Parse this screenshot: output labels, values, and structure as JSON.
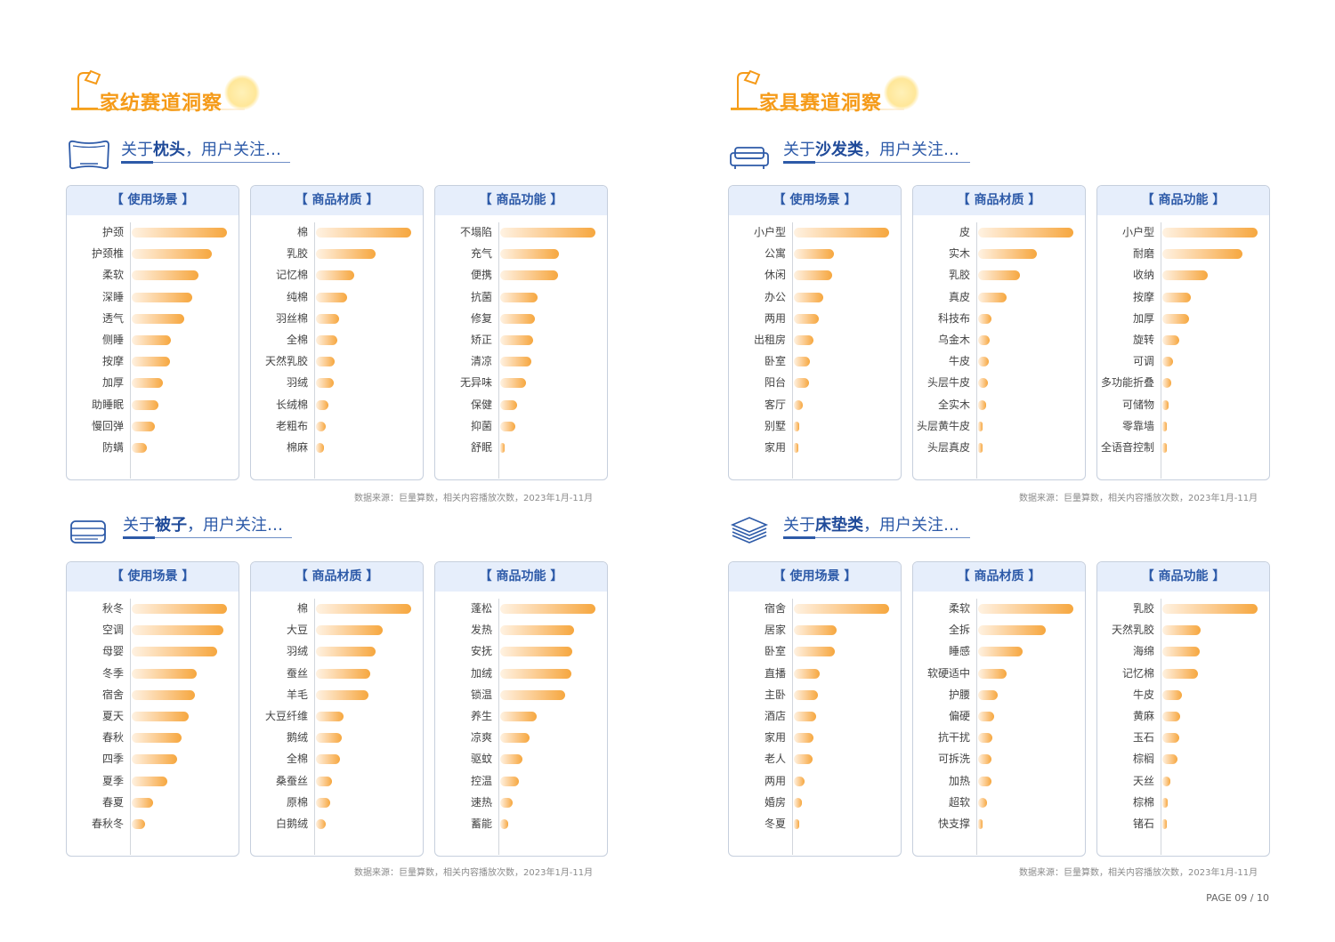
{
  "sections": [
    {
      "title": "家纺赛道洞察"
    },
    {
      "title": "家具赛道洞察"
    }
  ],
  "colors": {
    "accent_orange": "#f59a18",
    "accent_blue": "#2d5aa8",
    "bar_end": "#f6a73f",
    "panel_header_bg": "#e6eefb"
  },
  "page": "PAGE 09 / 10",
  "chart_data": [
    {
      "id": "pillow",
      "icon": "pillow-icon",
      "prefix": "关于",
      "keyword": "枕头",
      "suffix": "，用户关注…",
      "source": "数据来源：巨量算数，相关内容播放次数，2023年1月-11月",
      "panels": [
        {
          "type": "bar",
          "title": "【 使用场景 】",
          "categories": [
            "护颈",
            "护颈椎",
            "柔软",
            "深睡",
            "透气",
            "侧睡",
            "按摩",
            "加厚",
            "助睡眠",
            "慢回弹",
            "防螨"
          ],
          "values": [
            100,
            84,
            70,
            64,
            55,
            41,
            40,
            33,
            28,
            24,
            16
          ]
        },
        {
          "type": "bar",
          "title": "【 商品材质 】",
          "categories": [
            "棉",
            "乳胶",
            "记忆棉",
            "纯棉",
            "羽丝棉",
            "全棉",
            "天然乳胶",
            "羽绒",
            "长绒棉",
            "老粗布",
            "棉麻"
          ],
          "values": [
            100,
            63,
            40,
            33,
            24,
            22,
            20,
            19,
            13,
            10,
            8
          ]
        },
        {
          "type": "bar",
          "title": "【 商品功能 】",
          "categories": [
            "不塌陷",
            "充气",
            "便携",
            "抗菌",
            "修复",
            "矫正",
            "清凉",
            "无异味",
            "保健",
            "抑菌",
            "舒眠"
          ],
          "values": [
            100,
            62,
            61,
            39,
            36,
            35,
            33,
            27,
            18,
            16,
            5
          ]
        }
      ]
    },
    {
      "id": "sofa",
      "icon": "sofa-icon",
      "prefix": "关于",
      "keyword": "沙发类",
      "suffix": "，用户关注…",
      "source": "数据来源：巨量算数，相关内容播放次数，2023年1月-11月",
      "panels": [
        {
          "type": "bar",
          "title": "【 使用场景 】",
          "categories": [
            "小户型",
            "公寓",
            "休闲",
            "办公",
            "两用",
            "出租房",
            "卧室",
            "阳台",
            "客厅",
            "别墅",
            "家用"
          ],
          "values": [
            100,
            42,
            40,
            31,
            26,
            21,
            17,
            16,
            9,
            6,
            4
          ]
        },
        {
          "type": "bar",
          "title": "【 商品材质 】",
          "categories": [
            "皮",
            "实木",
            "乳胶",
            "真皮",
            "科技布",
            "乌金木",
            "牛皮",
            "头层牛皮",
            "全实木",
            "头层黄牛皮",
            "头层真皮"
          ],
          "values": [
            100,
            62,
            44,
            30,
            14,
            12,
            11,
            10,
            8,
            5,
            3
          ]
        },
        {
          "type": "bar",
          "title": "【 商品功能 】",
          "categories": [
            "小户型",
            "耐磨",
            "收纳",
            "按摩",
            "加厚",
            "旋转",
            "可调",
            "多功能折叠",
            "可储物",
            "零靠墙",
            "全语音控制"
          ],
          "values": [
            100,
            84,
            48,
            30,
            28,
            18,
            11,
            9,
            7,
            5,
            2
          ]
        }
      ]
    },
    {
      "id": "quilt",
      "icon": "quilt-icon",
      "prefix": "关于",
      "keyword": "被子",
      "suffix": "，用户关注…",
      "source": "数据来源：巨量算数，相关内容播放次数，2023年1月-11月",
      "panels": [
        {
          "type": "bar",
          "title": "【 使用场景 】",
          "categories": [
            "秋冬",
            "空调",
            "母婴",
            "冬季",
            "宿舍",
            "夏天",
            "春秋",
            "四季",
            "夏季",
            "春夏",
            "春秋冬"
          ],
          "values": [
            100,
            96,
            90,
            68,
            66,
            60,
            52,
            48,
            37,
            22,
            14
          ]
        },
        {
          "type": "bar",
          "title": "【 商品材质 】",
          "categories": [
            "棉",
            "大豆",
            "羽绒",
            "蚕丝",
            "羊毛",
            "大豆纤维",
            "鹅绒",
            "全棉",
            "桑蚕丝",
            "原棉",
            "白鹅绒"
          ],
          "values": [
            100,
            70,
            63,
            57,
            55,
            29,
            27,
            25,
            17,
            15,
            10
          ]
        },
        {
          "type": "bar",
          "title": "【 商品功能 】",
          "categories": [
            "蓬松",
            "发热",
            "安抚",
            "加绒",
            "锁温",
            "养生",
            "凉爽",
            "驱蚊",
            "控温",
            "速热",
            "蓄能"
          ],
          "values": [
            100,
            78,
            76,
            75,
            68,
            38,
            31,
            23,
            20,
            13,
            8
          ]
        }
      ]
    },
    {
      "id": "mattress",
      "icon": "mattress-icon",
      "prefix": "关于",
      "keyword": "床垫类",
      "suffix": "，用户关注…",
      "source": "数据来源：巨量算数，相关内容播放次数，2023年1月-11月",
      "panels": [
        {
          "type": "bar",
          "title": "【 使用场景 】",
          "categories": [
            "宿舍",
            "居家",
            "卧室",
            "直播",
            "主卧",
            "酒店",
            "家用",
            "老人",
            "两用",
            "婚房",
            "冬夏"
          ],
          "values": [
            100,
            45,
            43,
            27,
            25,
            23,
            21,
            20,
            11,
            8,
            6
          ]
        },
        {
          "type": "bar",
          "title": "【 商品材质 】",
          "categories": [
            "柔软",
            "全拆",
            "睡感",
            "软硬适中",
            "护腰",
            "偏硬",
            "抗干扰",
            "可拆洗",
            "加热",
            "超软",
            "快支撑"
          ],
          "values": [
            100,
            71,
            47,
            30,
            21,
            17,
            15,
            14,
            14,
            9,
            3
          ]
        },
        {
          "type": "bar",
          "title": "【 商品功能 】",
          "categories": [
            "乳胶",
            "天然乳胶",
            "海绵",
            "记忆棉",
            "牛皮",
            "黄麻",
            "玉石",
            "棕榈",
            "天丝",
            "棕棉",
            "锗石"
          ],
          "values": [
            100,
            40,
            39,
            37,
            21,
            19,
            18,
            16,
            8,
            6,
            4
          ]
        }
      ]
    }
  ]
}
